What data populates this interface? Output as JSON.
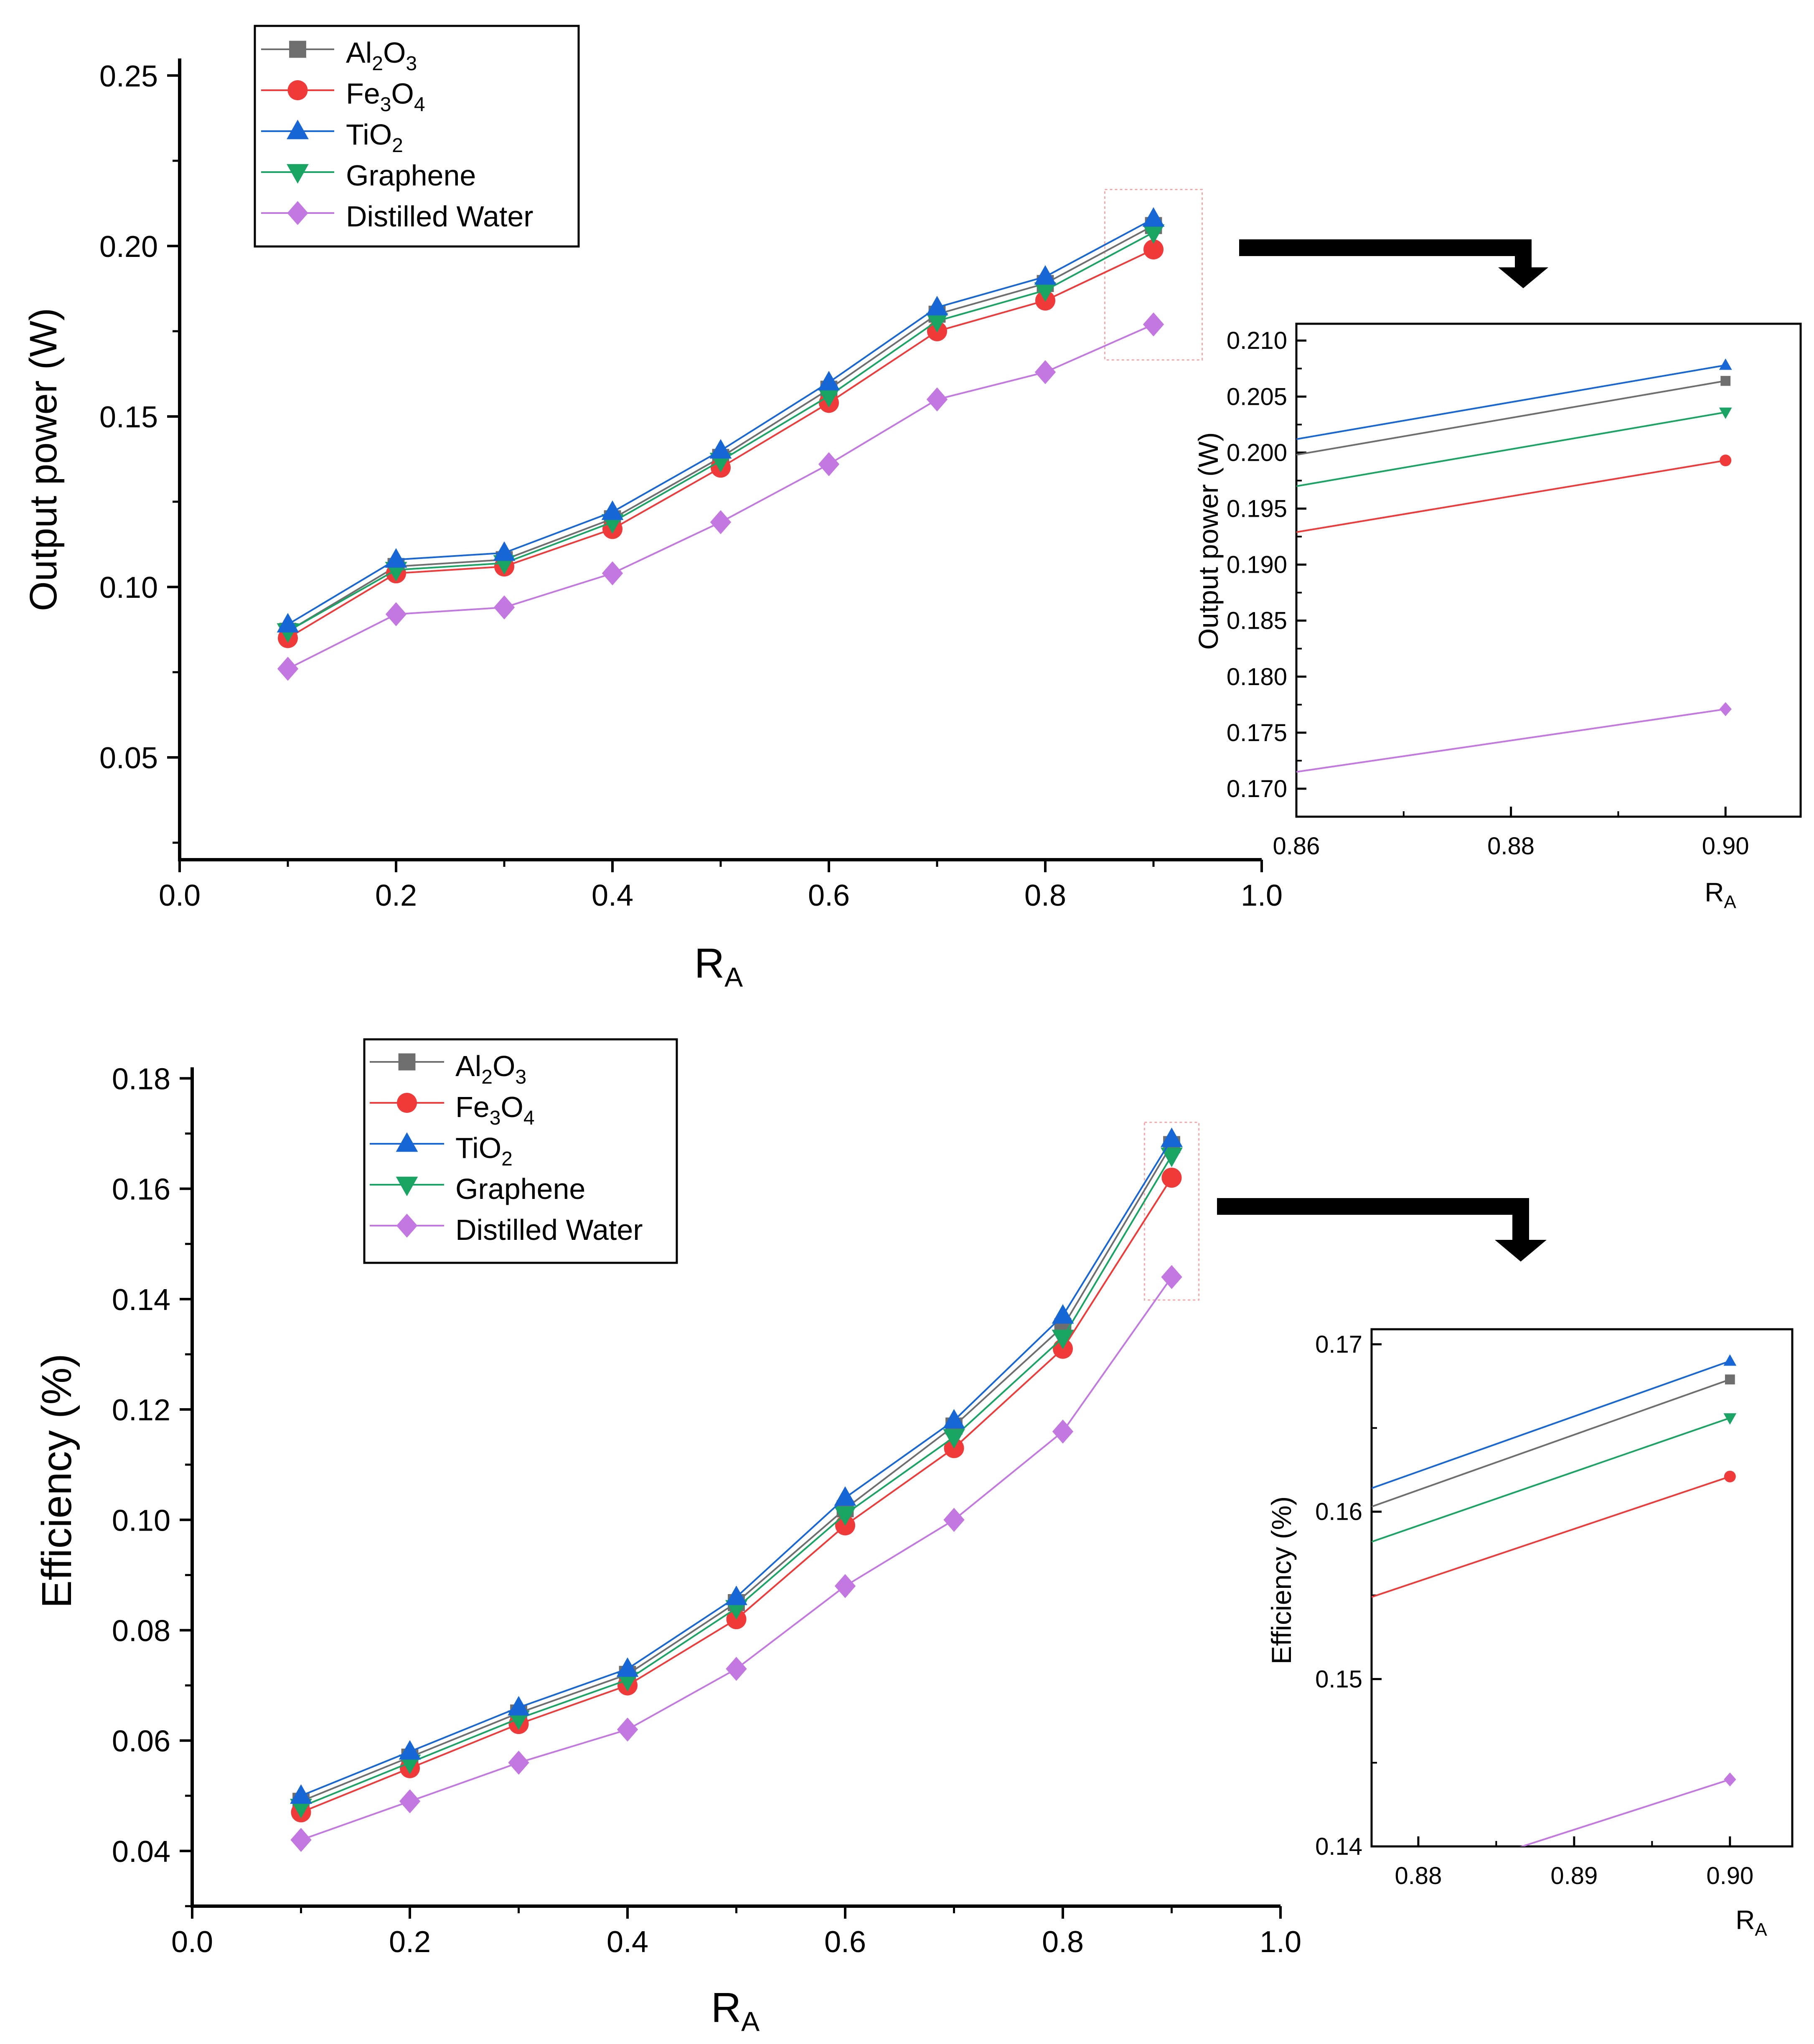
{
  "colors": {
    "al2o3": "#6e6e6e",
    "fe3o4": "#f03a3a",
    "tio2": "#1766d6",
    "graphene": "#1aa463",
    "water": "#c278e0",
    "zoom_box": "#f3a8a8"
  },
  "legend_labels": {
    "al2o3": {
      "b1": "Al",
      "s1": "2",
      "b2": "O",
      "s2": "3"
    },
    "fe3o4": {
      "b1": "Fe",
      "s1": "3",
      "b2": "O",
      "s2": "4"
    },
    "tio2": {
      "b1": "TiO",
      "s1": "2"
    },
    "graphene": {
      "b1": "Graphene"
    },
    "water": {
      "b1": "Distilled Water"
    }
  },
  "axis_titles": {
    "ra": {
      "base": "R",
      "sub": "A"
    },
    "power": "Output power (W)",
    "efficiency": "Efficiency (%)"
  },
  "chart_data": [
    {
      "type": "line",
      "xlim": [
        0.0,
        1.0
      ],
      "ylim": [
        0.02,
        0.255
      ],
      "x": [
        0.1,
        0.2,
        0.3,
        0.4,
        0.5,
        0.6,
        0.7,
        0.8,
        0.9
      ],
      "xticks": [
        "0.0",
        "0.2",
        "0.4",
        "0.6",
        "0.8",
        "1.0"
      ],
      "yticks": [
        "0.05",
        "0.10",
        "0.15",
        "0.20",
        "0.25"
      ],
      "series": [
        {
          "key": "al2o3",
          "marker": "square",
          "values": [
            0.087,
            0.106,
            0.108,
            0.12,
            0.138,
            0.158,
            0.18,
            0.189,
            0.206
          ]
        },
        {
          "key": "fe3o4",
          "marker": "circle",
          "values": [
            0.085,
            0.104,
            0.106,
            0.117,
            0.135,
            0.154,
            0.175,
            0.184,
            0.199
          ]
        },
        {
          "key": "tio2",
          "marker": "triangle-up",
          "values": [
            0.089,
            0.108,
            0.11,
            0.122,
            0.14,
            0.16,
            0.182,
            0.191,
            0.208
          ]
        },
        {
          "key": "graphene",
          "marker": "triangle-down",
          "values": [
            0.087,
            0.105,
            0.107,
            0.119,
            0.137,
            0.156,
            0.178,
            0.187,
            0.204
          ]
        },
        {
          "key": "water",
          "marker": "diamond",
          "values": [
            0.076,
            0.092,
            0.094,
            0.104,
            0.119,
            0.136,
            0.155,
            0.163,
            0.177
          ]
        }
      ],
      "inset": {
        "xlim": [
          0.86,
          0.907
        ],
        "ylim": [
          0.1675,
          0.2115
        ],
        "xticks": [
          "0.86",
          "0.88",
          "0.90"
        ],
        "yticks": [
          "0.170",
          "0.175",
          "0.180",
          "0.185",
          "0.190",
          "0.195",
          "0.200",
          "0.205",
          "0.210"
        ],
        "series": [
          {
            "key": "al2o3",
            "marker": "square",
            "x": [
              0.86,
              0.9
            ],
            "values": [
              0.1998,
              0.2064
            ]
          },
          {
            "key": "fe3o4",
            "marker": "circle",
            "x": [
              0.86,
              0.9
            ],
            "values": [
              0.1929,
              0.1993
            ]
          },
          {
            "key": "tio2",
            "marker": "triangle-up",
            "x": [
              0.86,
              0.9
            ],
            "values": [
              0.2012,
              0.2078
            ]
          },
          {
            "key": "graphene",
            "marker": "triangle-down",
            "x": [
              0.86,
              0.9
            ],
            "values": [
              0.197,
              0.2036
            ]
          },
          {
            "key": "water",
            "marker": "diamond",
            "x": [
              0.86,
              0.9
            ],
            "values": [
              0.1715,
              0.1771
            ]
          }
        ]
      }
    },
    {
      "type": "line",
      "xlim": [
        0.0,
        1.0
      ],
      "ylim": [
        0.03,
        0.182
      ],
      "x": [
        0.1,
        0.2,
        0.3,
        0.4,
        0.5,
        0.6,
        0.7,
        0.8,
        0.9
      ],
      "xticks": [
        "0.0",
        "0.2",
        "0.4",
        "0.6",
        "0.8",
        "1.0"
      ],
      "yticks": [
        "0.04",
        "0.06",
        "0.08",
        "0.10",
        "0.12",
        "0.14",
        "0.16",
        "0.18"
      ],
      "series": [
        {
          "key": "al2o3",
          "marker": "square",
          "values": [
            0.049,
            0.057,
            0.065,
            0.072,
            0.085,
            0.102,
            0.117,
            0.135,
            0.168
          ]
        },
        {
          "key": "fe3o4",
          "marker": "circle",
          "values": [
            0.047,
            0.055,
            0.063,
            0.07,
            0.082,
            0.099,
            0.113,
            0.131,
            0.162
          ]
        },
        {
          "key": "tio2",
          "marker": "triangle-up",
          "values": [
            0.05,
            0.058,
            0.066,
            0.073,
            0.086,
            0.104,
            0.118,
            0.137,
            0.169
          ]
        },
        {
          "key": "graphene",
          "marker": "triangle-down",
          "values": [
            0.048,
            0.056,
            0.064,
            0.071,
            0.084,
            0.101,
            0.115,
            0.133,
            0.166
          ]
        },
        {
          "key": "water",
          "marker": "diamond",
          "values": [
            0.042,
            0.049,
            0.056,
            0.062,
            0.073,
            0.088,
            0.1,
            0.116,
            0.144
          ]
        }
      ],
      "inset": {
        "xlim": [
          0.877,
          0.904
        ],
        "ylim": [
          0.14,
          0.1709
        ],
        "xticks": [
          "0.88",
          "0.89",
          "0.90"
        ],
        "yticks": [
          "0.14",
          "0.15",
          "0.16",
          "0.17"
        ],
        "series": [
          {
            "key": "al2o3",
            "marker": "square",
            "x": [
              0.877,
              0.9
            ],
            "values": [
              0.1603,
              0.1679
            ]
          },
          {
            "key": "fe3o4",
            "marker": "circle",
            "x": [
              0.877,
              0.9
            ],
            "values": [
              0.1549,
              0.1621
            ]
          },
          {
            "key": "tio2",
            "marker": "triangle-up",
            "x": [
              0.877,
              0.9
            ],
            "values": [
              0.1614,
              0.169
            ]
          },
          {
            "key": "graphene",
            "marker": "triangle-down",
            "x": [
              0.877,
              0.9
            ],
            "values": [
              0.1582,
              0.1656
            ]
          },
          {
            "key": "water",
            "marker": "diamond",
            "x": [
              0.877,
              0.9
            ],
            "values": [
              0.1371,
              0.144
            ]
          }
        ]
      }
    }
  ]
}
